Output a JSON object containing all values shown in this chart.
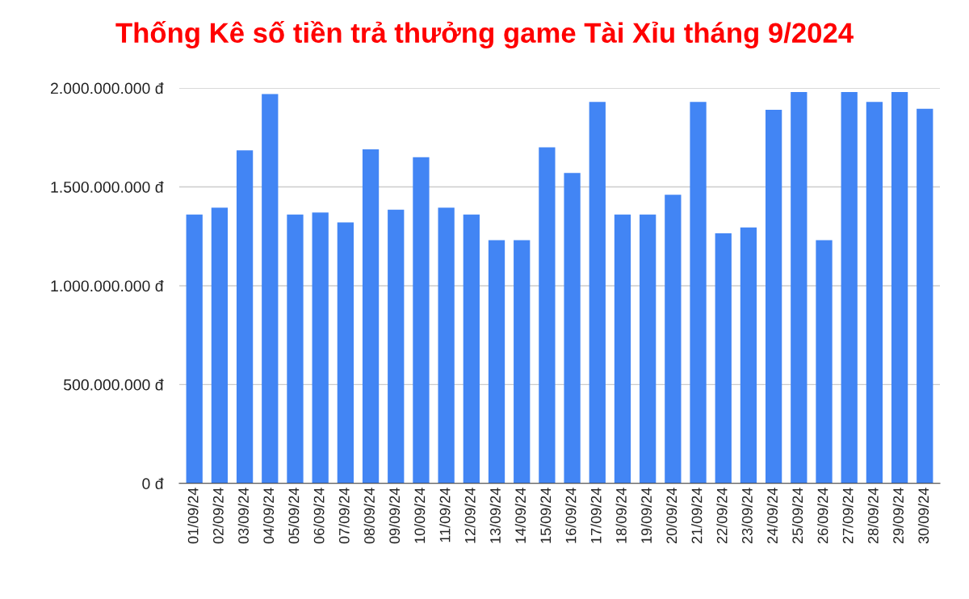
{
  "chart_data": {
    "type": "bar",
    "title": "Thống Kê số tiền trả thưởng game Tài Xỉu tháng 9/2024",
    "categories": [
      "01/09/24",
      "02/09/24",
      "03/09/24",
      "04/09/24",
      "05/09/24",
      "06/09/24",
      "07/09/24",
      "08/09/24",
      "09/09/24",
      "10/09/24",
      "11/09/24",
      "12/09/24",
      "13/09/24",
      "14/09/24",
      "15/09/24",
      "16/09/24",
      "17/09/24",
      "18/09/24",
      "19/09/24",
      "20/09/24",
      "21/09/24",
      "22/09/24",
      "23/09/24",
      "24/09/24",
      "25/09/24",
      "26/09/24",
      "27/09/24",
      "28/09/24",
      "29/09/24",
      "30/09/24"
    ],
    "values": [
      1360000000,
      1395000000,
      1685000000,
      1970000000,
      1360000000,
      1370000000,
      1320000000,
      1690000000,
      1385000000,
      1650000000,
      1395000000,
      1360000000,
      1230000000,
      1230000000,
      1700000000,
      1570000000,
      1930000000,
      1360000000,
      1360000000,
      1460000000,
      1930000000,
      1265000000,
      1295000000,
      1890000000,
      1980000000,
      1230000000,
      1980000000,
      1930000000,
      1980000000,
      1895000000
    ],
    "color": "#4285f4",
    "ylim": [
      0,
      2000000000
    ],
    "yticks": [
      {
        "value": 0,
        "label": "0 đ"
      },
      {
        "value": 500000000,
        "label": "500.000.000 đ"
      },
      {
        "value": 1000000000,
        "label": "1.000.000.000 đ"
      },
      {
        "value": 1500000000,
        "label": "1.500.000.000 đ"
      },
      {
        "value": 2000000000,
        "label": "2.000.000.000 đ"
      }
    ],
    "grid": "y"
  }
}
